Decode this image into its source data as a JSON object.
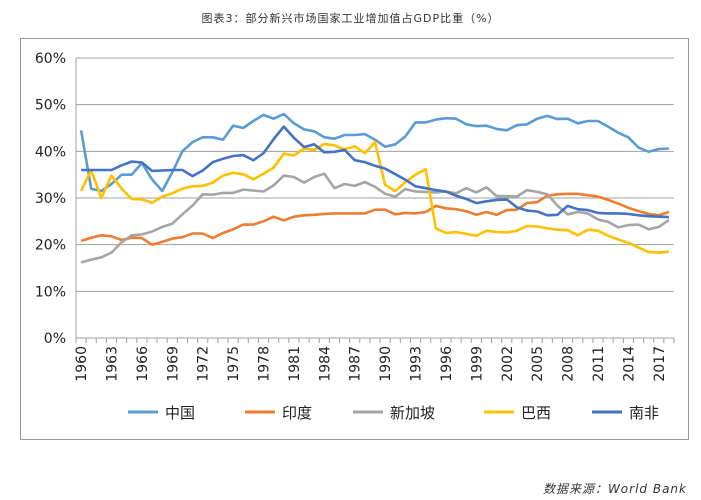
{
  "title": "图表3：部分新兴市场国家工业增加值占GDP比重（%）",
  "source": "数据来源：World Bank",
  "chart_data": {
    "type": "line",
    "title": "图表3：部分新兴市场国家工业增加值占GDP比重（%）",
    "xlabel": "",
    "ylabel": "",
    "x": [
      1960,
      1961,
      1962,
      1963,
      1964,
      1965,
      1966,
      1967,
      1968,
      1969,
      1970,
      1971,
      1972,
      1973,
      1974,
      1975,
      1976,
      1977,
      1978,
      1979,
      1980,
      1981,
      1982,
      1983,
      1984,
      1985,
      1986,
      1987,
      1988,
      1989,
      1990,
      1991,
      1992,
      1993,
      1994,
      1995,
      1996,
      1997,
      1998,
      1999,
      2000,
      2001,
      2002,
      2003,
      2004,
      2005,
      2006,
      2007,
      2008,
      2009,
      2010,
      2011,
      2012,
      2013,
      2014,
      2015,
      2016,
      2017,
      2018
    ],
    "xticks": [
      "1960",
      "1963",
      "1966",
      "1969",
      "1972",
      "1975",
      "1978",
      "1981",
      "1984",
      "1987",
      "1990",
      "1993",
      "1996",
      "1999",
      "2002",
      "2005",
      "2008",
      "2011",
      "2014",
      "2017"
    ],
    "ylim": [
      0,
      60
    ],
    "yticks": [
      "0%",
      "10%",
      "20%",
      "30%",
      "40%",
      "50%",
      "60%"
    ],
    "grid": true,
    "legend": "bottom",
    "series": [
      {
        "name": "中国",
        "color": "#5b9bd5",
        "values": [
          44.5,
          32,
          31.5,
          33,
          35,
          35,
          37.5,
          34,
          31.5,
          35.5,
          40,
          42,
          43,
          43,
          42.5,
          45.5,
          45,
          46.5,
          47.8,
          47,
          48,
          46,
          44.7,
          44.3,
          43,
          42.7,
          43.5,
          43.5,
          43.7,
          42.5,
          41,
          41.5,
          43.2,
          46.2,
          46.2,
          46.8,
          47.1,
          47,
          45.8,
          45.4,
          45.5,
          44.8,
          44.5,
          45.6,
          45.8,
          47,
          47.6,
          46.9,
          47,
          46,
          46.5,
          46.5,
          45.3,
          44,
          43,
          40.8,
          39.9,
          40.5,
          40.6
        ]
      },
      {
        "name": "印度",
        "color": "#ed7d31",
        "values": [
          20.8,
          21.5,
          22,
          21.8,
          21,
          21.5,
          21.4,
          20,
          20.6,
          21.3,
          21.6,
          22.4,
          22.4,
          21.4,
          22.5,
          23.3,
          24.3,
          24.3,
          25,
          26,
          25.2,
          26,
          26.3,
          26.4,
          26.6,
          26.7,
          26.7,
          26.7,
          26.7,
          27.5,
          27.5,
          26.5,
          26.8,
          26.7,
          27,
          28.3,
          27.8,
          27.6,
          27.2,
          26.4,
          27,
          26.4,
          27.4,
          27.5,
          28.9,
          29.1,
          30.5,
          30.8,
          30.9,
          30.9,
          30.6,
          30.3,
          29.6,
          28.8,
          27.9,
          27.2,
          26.6,
          26.3,
          27
        ]
      },
      {
        "name": "新加坡",
        "color": "#a5a5a5",
        "values": [
          16.2,
          16.8,
          17.3,
          18.3,
          20.5,
          22,
          22.2,
          22.8,
          23.8,
          24.5,
          26.5,
          28.4,
          30.8,
          30.7,
          31.1,
          31.1,
          31.8,
          31.6,
          31.4,
          32.7,
          34.8,
          34.5,
          33.3,
          34.5,
          35.2,
          32.1,
          33,
          32.6,
          33.4,
          32.4,
          30.9,
          30.3,
          31.9,
          31.4,
          31.3,
          31.2,
          31.4,
          31,
          32.1,
          31.2,
          32.3,
          30.4,
          30.4,
          30.3,
          31.7,
          31.3,
          30.8,
          28.4,
          26.5,
          27,
          26.7,
          25.4,
          24.9,
          23.7,
          24.2,
          24.3,
          23.3,
          23.8,
          25.3
        ]
      },
      {
        "name": "巴西",
        "color": "#ffc000",
        "values": [
          31.5,
          36,
          30,
          34.8,
          32,
          29.8,
          29.7,
          29,
          30.3,
          31,
          32,
          32.5,
          32.6,
          33.3,
          34.8,
          35.4,
          35.1,
          34,
          35.2,
          36.5,
          39.5,
          39.1,
          40.6,
          40.3,
          41.6,
          41.3,
          40.4,
          41.1,
          39.6,
          42,
          32.8,
          31.5,
          33.4,
          35,
          36.2,
          23.5,
          22.5,
          22.7,
          22.3,
          21.9,
          23,
          22.7,
          22.6,
          23,
          24,
          23.9,
          23.5,
          23.2,
          23.1,
          22,
          23.2,
          23,
          21.9,
          21.1,
          20.4,
          19.4,
          18.4,
          18.3,
          18.5
        ]
      },
      {
        "name": "南非",
        "color": "#4472c4",
        "values": [
          36,
          36,
          36,
          36,
          37,
          37.8,
          37.6,
          35.8,
          35.9,
          36,
          36,
          34.7,
          35.9,
          37.7,
          38.4,
          39,
          39.2,
          38.1,
          39.6,
          42.6,
          45.3,
          42.9,
          40.9,
          41.5,
          39.8,
          39.9,
          40.3,
          38.1,
          37.7,
          36.9,
          36.3,
          35.1,
          33.9,
          32.5,
          32.1,
          31.7,
          31.4,
          30.5,
          29.8,
          28.9,
          29.3,
          29.6,
          29.7,
          28,
          27.3,
          27.1,
          26.3,
          26.4,
          28.3,
          27.6,
          27.4,
          26.8,
          26.7,
          26.7,
          26.6,
          26.3,
          26.1,
          26,
          25.9
        ]
      }
    ]
  }
}
